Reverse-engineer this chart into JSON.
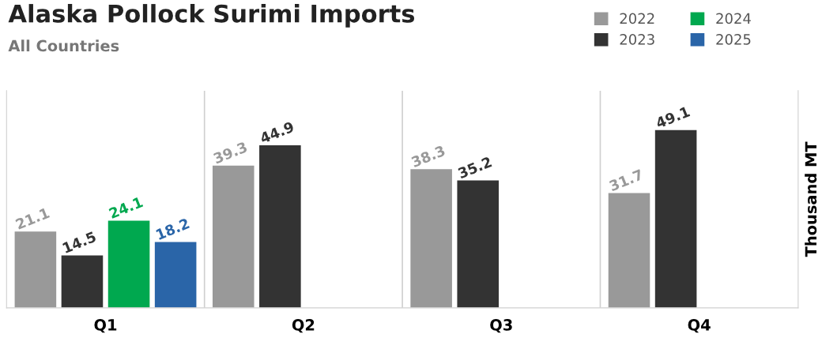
{
  "chart_data": {
    "type": "bar",
    "title": "Alaska Pollock Surimi Imports",
    "subtitle": "All Countries",
    "ylabel": "Thousand MT",
    "categories": [
      "Q1",
      "Q2",
      "Q3",
      "Q4"
    ],
    "series": [
      {
        "name": "2022",
        "color": "#999999",
        "values": [
          21.1,
          39.3,
          38.3,
          31.7
        ]
      },
      {
        "name": "2023",
        "color": "#333333",
        "values": [
          14.5,
          44.9,
          35.2,
          49.1
        ]
      },
      {
        "name": "2024",
        "color": "#00a84f",
        "values": [
          24.1,
          null,
          null,
          null
        ]
      },
      {
        "name": "2025",
        "color": "#2a65a8",
        "values": [
          18.2,
          null,
          null,
          null
        ]
      }
    ],
    "ylim": [
      0,
      60
    ],
    "data_labels": true,
    "grid": "x",
    "legend": "top right",
    "tick_labels": "x"
  }
}
